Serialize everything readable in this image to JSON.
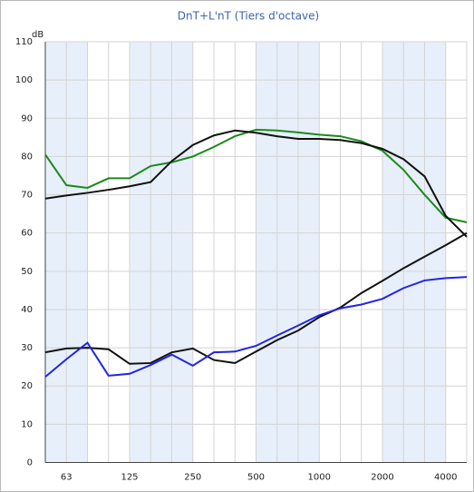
{
  "chart_data": {
    "type": "line",
    "title": "DnT+L'nT (Tiers d'octave)",
    "ylabel": "dB",
    "categories": [
      null,
      "63",
      null,
      null,
      "125",
      null,
      null,
      "250",
      null,
      null,
      "500",
      null,
      null,
      "1000",
      null,
      null,
      "2000",
      null,
      null,
      "4000",
      null
    ],
    "series": [
      {
        "color": "#1a8a1a",
        "values": [
          80.5,
          72.5,
          71.8,
          74.3,
          74.3,
          77.5,
          78.5,
          80,
          82.5,
          85.3,
          87,
          86.8,
          86.3,
          85.7,
          85.3,
          84,
          81.5,
          76.5,
          70,
          64,
          62.8
        ]
      },
      {
        "color": "#111111",
        "values": [
          69,
          69.8,
          70.5,
          71.3,
          72.2,
          73.3,
          78.8,
          83,
          85.5,
          86.8,
          86.2,
          85.3,
          84.6,
          84.6,
          84.3,
          83.5,
          82,
          79.3,
          74.8,
          64.5,
          59
        ]
      },
      {
        "color": "#111111",
        "values": [
          28.8,
          29.8,
          30,
          29.6,
          25.8,
          26,
          28.8,
          29.8,
          26.8,
          26,
          29,
          32,
          34.5,
          38,
          40.5,
          44.3,
          47.5,
          50.8,
          53.8,
          56.8,
          60
        ]
      },
      {
        "color": "#2323e8",
        "values": [
          22.4,
          27,
          31.3,
          22.7,
          23.2,
          25.5,
          28.2,
          25.3,
          28.8,
          29,
          30.5,
          33.2,
          35.8,
          38.5,
          40.3,
          41.3,
          42.8,
          45.6,
          47.6,
          48.2,
          48.5
        ]
      }
    ],
    "ylim": [
      0,
      110
    ],
    "yticks": [
      0,
      10,
      20,
      30,
      40,
      50,
      60,
      70,
      80,
      90,
      100,
      110
    ],
    "grid": true
  }
}
